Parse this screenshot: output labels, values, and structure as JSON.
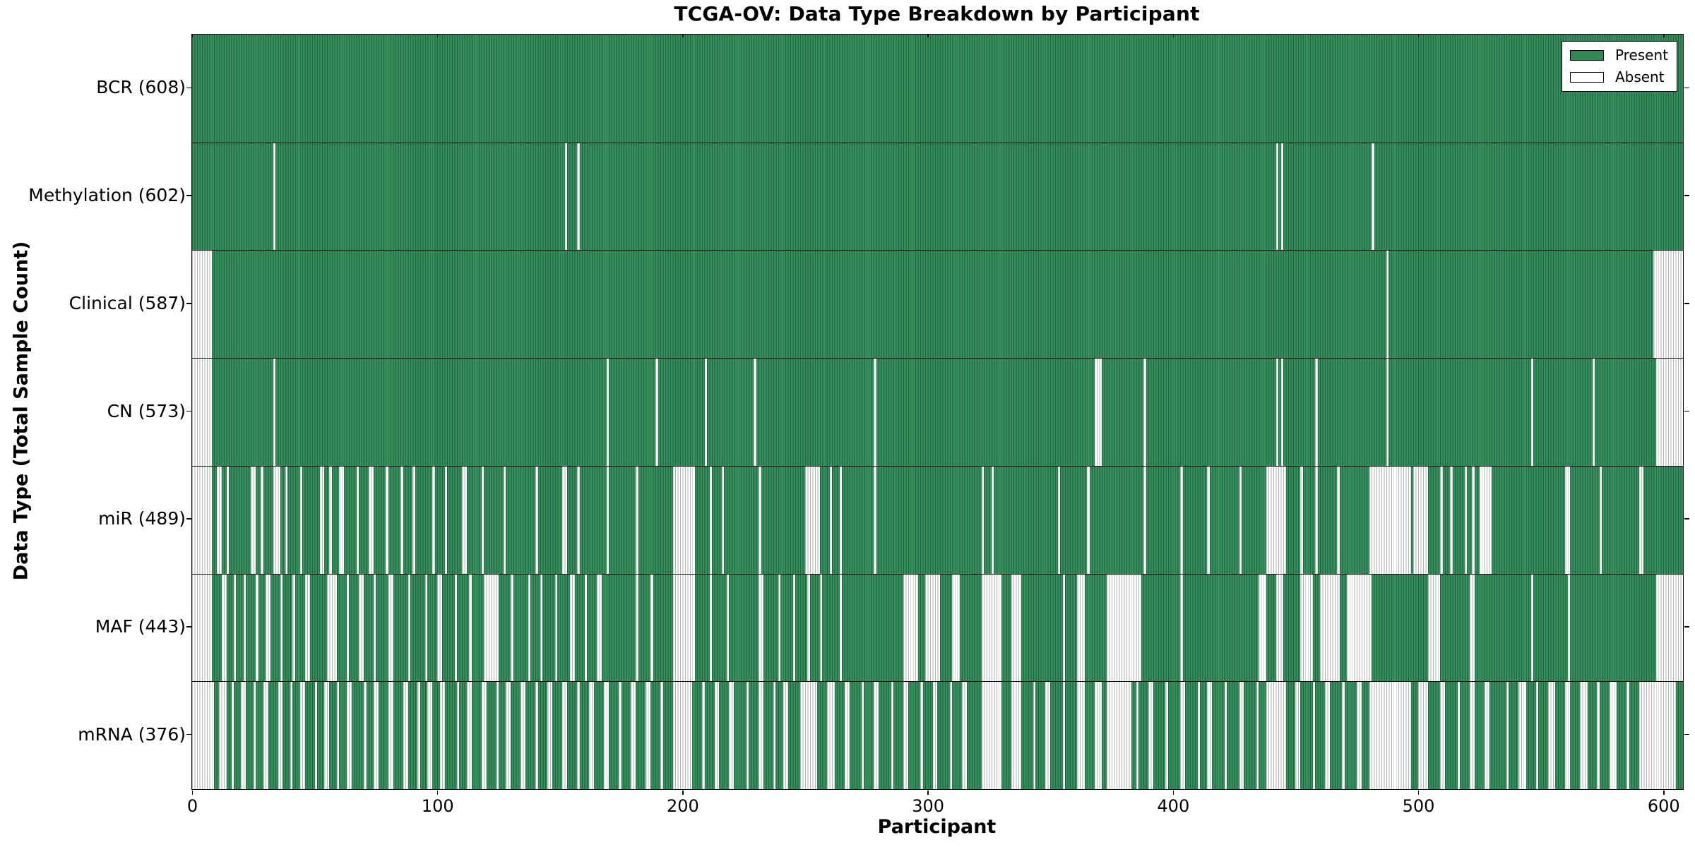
{
  "title": "TCGA-OV: Data Type Breakdown by Participant",
  "x_axis": {
    "label": "Participant",
    "ticks": [
      0,
      100,
      200,
      300,
      400,
      500,
      600
    ],
    "min": 0,
    "max": 608
  },
  "y_axis": {
    "label": "Data Type (Total Sample Count)"
  },
  "legend": {
    "present_label": "Present",
    "absent_label": "Absent"
  },
  "colors": {
    "present": "#2e8b57",
    "absent": "#ffffff",
    "edge": "#000000",
    "background": "#ffffff"
  },
  "chart_data": {
    "type": "heatmap",
    "n_participants": 608,
    "cell_states": [
      "Present",
      "Absent"
    ],
    "rows": [
      {
        "name": "bcr",
        "label": "BCR (608)",
        "present_count": 608,
        "absent_ranges": []
      },
      {
        "name": "methylation",
        "label": "Methylation (602)",
        "present_count": 602,
        "absent_ranges": [
          [
            33,
            33
          ],
          [
            152,
            152
          ],
          [
            157,
            157
          ],
          [
            442,
            442
          ],
          [
            444,
            444
          ],
          [
            481,
            481
          ]
        ]
      },
      {
        "name": "clinical",
        "label": "Clinical (587)",
        "present_count": 587,
        "absent_ranges": [
          [
            0,
            7
          ],
          [
            487,
            487
          ],
          [
            596,
            607
          ]
        ]
      },
      {
        "name": "cn",
        "label": "CN (573)",
        "present_count": 573,
        "absent_ranges": [
          [
            0,
            7
          ],
          [
            33,
            33
          ],
          [
            169,
            169
          ],
          [
            189,
            189
          ],
          [
            209,
            209
          ],
          [
            229,
            229
          ],
          [
            278,
            278
          ],
          [
            368,
            370
          ],
          [
            388,
            388
          ],
          [
            442,
            442
          ],
          [
            444,
            444
          ],
          [
            458,
            458
          ],
          [
            487,
            487
          ],
          [
            546,
            546
          ],
          [
            571,
            571
          ],
          [
            597,
            607
          ]
        ]
      },
      {
        "name": "mir",
        "label": "miR (489)",
        "present_count": 489,
        "absent_ranges": [
          [
            0,
            7
          ],
          [
            10,
            11
          ],
          [
            14,
            14
          ],
          [
            24,
            25
          ],
          [
            28,
            28
          ],
          [
            33,
            35
          ],
          [
            38,
            38
          ],
          [
            44,
            44
          ],
          [
            52,
            53
          ],
          [
            56,
            56
          ],
          [
            60,
            61
          ],
          [
            67,
            67
          ],
          [
            72,
            73
          ],
          [
            79,
            79
          ],
          [
            85,
            85
          ],
          [
            90,
            90
          ],
          [
            98,
            98
          ],
          [
            103,
            103
          ],
          [
            110,
            111
          ],
          [
            118,
            118
          ],
          [
            127,
            127
          ],
          [
            140,
            140
          ],
          [
            151,
            152
          ],
          [
            157,
            157
          ],
          [
            169,
            169
          ],
          [
            181,
            181
          ],
          [
            196,
            204
          ],
          [
            211,
            211
          ],
          [
            216,
            216
          ],
          [
            231,
            231
          ],
          [
            250,
            255
          ],
          [
            260,
            260
          ],
          [
            264,
            264
          ],
          [
            278,
            278
          ],
          [
            322,
            322
          ],
          [
            326,
            326
          ],
          [
            353,
            353
          ],
          [
            365,
            365
          ],
          [
            388,
            388
          ],
          [
            403,
            403
          ],
          [
            414,
            414
          ],
          [
            427,
            427
          ],
          [
            438,
            445
          ],
          [
            452,
            452
          ],
          [
            458,
            458
          ],
          [
            467,
            467
          ],
          [
            480,
            496
          ],
          [
            498,
            503
          ],
          [
            509,
            509
          ],
          [
            513,
            513
          ],
          [
            519,
            519
          ],
          [
            522,
            522
          ],
          [
            525,
            529
          ],
          [
            560,
            561
          ],
          [
            574,
            574
          ],
          [
            590,
            591
          ]
        ]
      },
      {
        "name": "maf",
        "label": "MAF (443)",
        "present_count": 443,
        "absent_ranges": [
          [
            0,
            7
          ],
          [
            12,
            13
          ],
          [
            17,
            17
          ],
          [
            21,
            21
          ],
          [
            26,
            26
          ],
          [
            30,
            31
          ],
          [
            36,
            36
          ],
          [
            41,
            41
          ],
          [
            46,
            47
          ],
          [
            55,
            58
          ],
          [
            63,
            63
          ],
          [
            68,
            69
          ],
          [
            74,
            74
          ],
          [
            80,
            81
          ],
          [
            88,
            88
          ],
          [
            95,
            95
          ],
          [
            100,
            101
          ],
          [
            107,
            107
          ],
          [
            113,
            113
          ],
          [
            119,
            124
          ],
          [
            130,
            130
          ],
          [
            137,
            137
          ],
          [
            142,
            142
          ],
          [
            148,
            148
          ],
          [
            154,
            155
          ],
          [
            160,
            160
          ],
          [
            165,
            166
          ],
          [
            181,
            181
          ],
          [
            187,
            187
          ],
          [
            196,
            204
          ],
          [
            211,
            211
          ],
          [
            218,
            218
          ],
          [
            231,
            232
          ],
          [
            239,
            239
          ],
          [
            245,
            245
          ],
          [
            251,
            251
          ],
          [
            256,
            256
          ],
          [
            264,
            264
          ],
          [
            290,
            295
          ],
          [
            299,
            304
          ],
          [
            310,
            312
          ],
          [
            322,
            329
          ],
          [
            334,
            337
          ],
          [
            355,
            355
          ],
          [
            361,
            363
          ],
          [
            373,
            386
          ],
          [
            403,
            403
          ],
          [
            435,
            437
          ],
          [
            442,
            444
          ],
          [
            452,
            456
          ],
          [
            460,
            467
          ],
          [
            471,
            480
          ],
          [
            504,
            508
          ],
          [
            521,
            522
          ],
          [
            546,
            546
          ],
          [
            561,
            561
          ],
          [
            597,
            607
          ]
        ]
      },
      {
        "name": "mrna",
        "label": "mRNA (376)",
        "present_count": 376,
        "absent_ranges": [
          [
            0,
            8
          ],
          [
            11,
            13
          ],
          [
            16,
            16
          ],
          [
            20,
            21
          ],
          [
            25,
            25
          ],
          [
            29,
            30
          ],
          [
            35,
            36
          ],
          [
            40,
            40
          ],
          [
            44,
            45
          ],
          [
            50,
            50
          ],
          [
            54,
            55
          ],
          [
            59,
            59
          ],
          [
            63,
            64
          ],
          [
            70,
            70
          ],
          [
            74,
            75
          ],
          [
            80,
            81
          ],
          [
            86,
            87
          ],
          [
            92,
            92
          ],
          [
            96,
            97
          ],
          [
            101,
            102
          ],
          [
            108,
            108
          ],
          [
            112,
            113
          ],
          [
            118,
            119
          ],
          [
            124,
            124
          ],
          [
            128,
            129
          ],
          [
            134,
            135
          ],
          [
            140,
            140
          ],
          [
            145,
            146
          ],
          [
            151,
            152
          ],
          [
            157,
            157
          ],
          [
            162,
            163
          ],
          [
            168,
            169
          ],
          [
            174,
            174
          ],
          [
            179,
            180
          ],
          [
            185,
            186
          ],
          [
            191,
            191
          ],
          [
            196,
            203
          ],
          [
            208,
            208
          ],
          [
            213,
            214
          ],
          [
            219,
            220
          ],
          [
            226,
            226
          ],
          [
            231,
            232
          ],
          [
            237,
            237
          ],
          [
            241,
            242
          ],
          [
            248,
            254
          ],
          [
            259,
            261
          ],
          [
            266,
            267
          ],
          [
            273,
            273
          ],
          [
            278,
            279
          ],
          [
            285,
            285
          ],
          [
            290,
            291
          ],
          [
            297,
            297
          ],
          [
            302,
            303
          ],
          [
            309,
            309
          ],
          [
            314,
            315
          ],
          [
            322,
            329
          ],
          [
            334,
            337
          ],
          [
            343,
            343
          ],
          [
            348,
            349
          ],
          [
            355,
            355
          ],
          [
            361,
            363
          ],
          [
            368,
            370
          ],
          [
            373,
            382
          ],
          [
            385,
            385
          ],
          [
            390,
            391
          ],
          [
            397,
            397
          ],
          [
            403,
            404
          ],
          [
            410,
            410
          ],
          [
            414,
            415
          ],
          [
            421,
            421
          ],
          [
            427,
            428
          ],
          [
            434,
            434
          ],
          [
            438,
            445
          ],
          [
            450,
            451
          ],
          [
            457,
            457
          ],
          [
            462,
            463
          ],
          [
            469,
            469
          ],
          [
            475,
            476
          ],
          [
            480,
            496
          ],
          [
            500,
            503
          ],
          [
            509,
            510
          ],
          [
            516,
            516
          ],
          [
            521,
            522
          ],
          [
            527,
            528
          ],
          [
            536,
            536
          ],
          [
            541,
            543
          ],
          [
            548,
            548
          ],
          [
            553,
            555
          ],
          [
            560,
            561
          ],
          [
            566,
            568
          ],
          [
            573,
            573
          ],
          [
            578,
            580
          ],
          [
            585,
            585
          ],
          [
            590,
            604
          ]
        ]
      }
    ]
  }
}
